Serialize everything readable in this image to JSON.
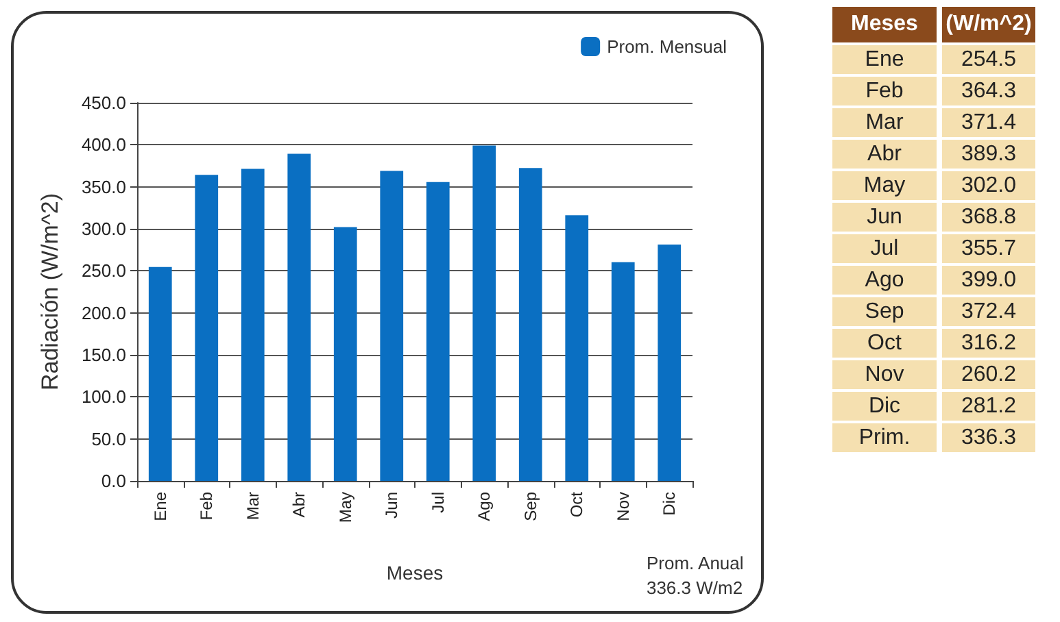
{
  "chart_data": [
    {
      "type": "bar",
      "xlabel": "Meses",
      "ylabel": "Radiación (W/m^2)",
      "categories": [
        "Ene",
        "Feb",
        "Mar",
        "Abr",
        "May",
        "Jun",
        "Jul",
        "Ago",
        "Sep",
        "Oct",
        "Nov",
        "Dic"
      ],
      "series": [
        {
          "name": "Prom. Mensual",
          "color": "#0a6fc2",
          "values": [
            254.5,
            364.3,
            371.4,
            389.3,
            302.0,
            368.8,
            355.7,
            399.0,
            372.4,
            316.2,
            260.2,
            281.2
          ]
        }
      ],
      "ylim": [
        0,
        450
      ],
      "yticks": [
        {
          "value": 0,
          "label": "0.0"
        },
        {
          "value": 50,
          "label": "50.0"
        },
        {
          "value": 100,
          "label": "100.0"
        },
        {
          "value": 150,
          "label": "150.0"
        },
        {
          "value": 200,
          "label": "200.0"
        },
        {
          "value": 250,
          "label": "250.0"
        },
        {
          "value": 300,
          "label": "300.0"
        },
        {
          "value": 350,
          "label": "350.0"
        },
        {
          "value": 400,
          "label": "400.0"
        },
        {
          "value": 450,
          "label": "450.0"
        }
      ],
      "grid": "y",
      "legend": "top right",
      "annotations": [
        "Prom. Anual 336.3 W/m2"
      ]
    },
    {
      "type": "other",
      "xlabel": "Meses",
      "ylabel": "(W/m^2)",
      "categories": [
        "Ene",
        "Feb",
        "Mar",
        "Abr",
        "May",
        "Jun",
        "Jul",
        "Ago",
        "Sep",
        "Oct",
        "Nov",
        "Dic",
        "Prim."
      ],
      "value_labels": [
        "254.5",
        "364.3",
        "371.4",
        "389.3",
        "302.0",
        "368.8",
        "355.7",
        "399.0",
        "372.4",
        "316.2",
        "260.2",
        "281.2",
        "336.3"
      ]
    }
  ]
}
